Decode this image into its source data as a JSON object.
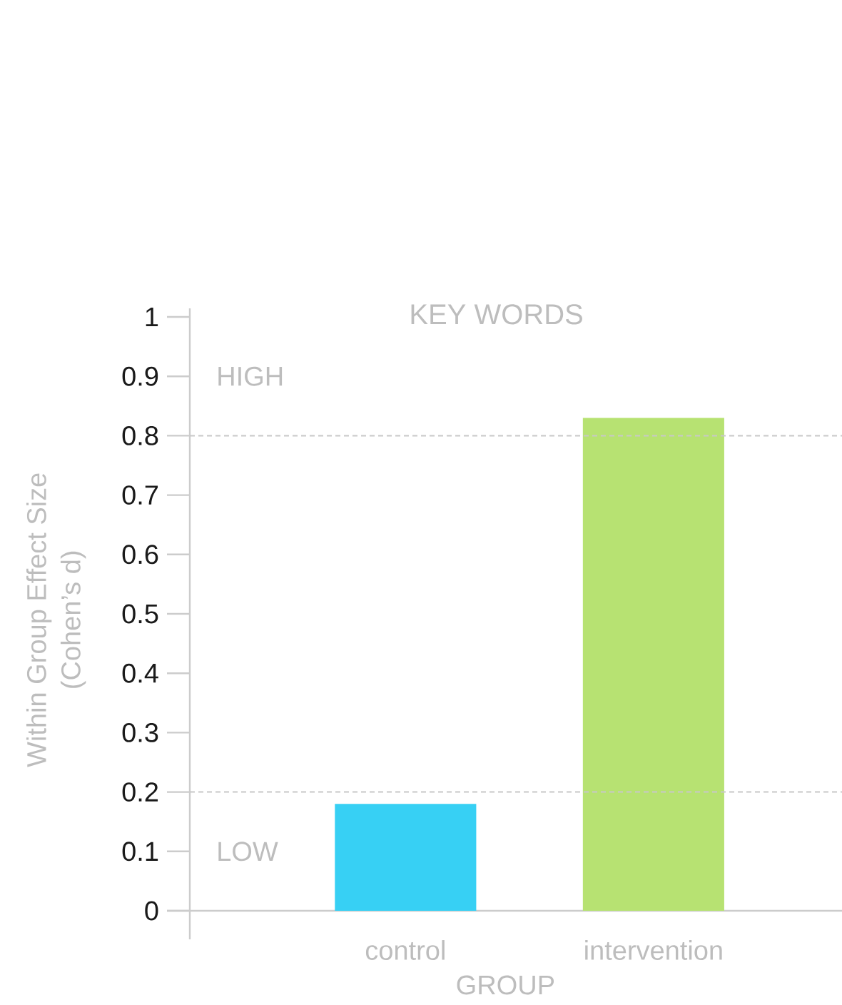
{
  "chart_data": {
    "type": "bar",
    "title": "KEY WORDS",
    "xlabel": "GROUP",
    "ylabel": "Within Group Effect Size (Cohen’s d)",
    "categories": [
      "control",
      "intervention"
    ],
    "values": [
      0.18,
      0.83
    ],
    "colors": [
      "#37d0f4",
      "#b7e272"
    ],
    "ylim": [
      0,
      1
    ],
    "yticks": [
      0,
      0.1,
      0.2,
      0.3,
      0.4,
      0.5,
      0.6,
      0.7,
      0.8,
      0.9,
      1
    ],
    "ref_lines": [
      {
        "axis": "y",
        "value": 0.8,
        "color": "#c8c8c8",
        "line_style": "dashed"
      },
      {
        "axis": "y",
        "value": 0.2,
        "color": "#c8c8c8",
        "line_style": "dashed"
      }
    ],
    "annotations": [
      "HIGH",
      "LOW"
    ]
  }
}
